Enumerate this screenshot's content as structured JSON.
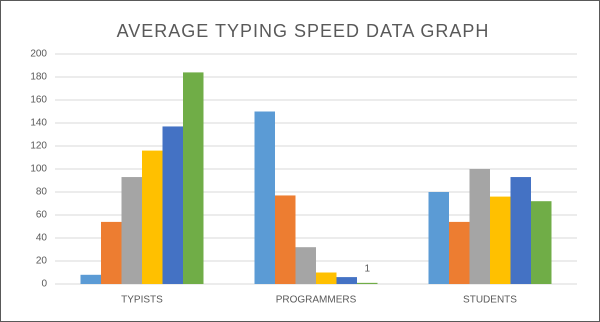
{
  "chart_data": {
    "type": "bar",
    "title": "AVERAGE TYPING SPEED DATA GRAPH",
    "categories": [
      "TYPISTS",
      "PROGRAMMERS",
      "STUDENTS"
    ],
    "series": [
      {
        "color": "#5b9bd5",
        "values": [
          8,
          150,
          80
        ]
      },
      {
        "color": "#ed7d31",
        "values": [
          54,
          77,
          54
        ]
      },
      {
        "color": "#a5a5a5",
        "values": [
          93,
          32,
          100
        ]
      },
      {
        "color": "#ffc000",
        "values": [
          116,
          10,
          76
        ]
      },
      {
        "color": "#4472c4",
        "values": [
          137,
          6,
          93
        ]
      },
      {
        "color": "#70ad47",
        "values": [
          184,
          1,
          72
        ],
        "value_labels": [
          null,
          "1",
          null
        ]
      }
    ],
    "ylim": [
      0,
      200
    ],
    "yticks": [
      0,
      20,
      40,
      60,
      80,
      100,
      120,
      140,
      160,
      180,
      200
    ],
    "grid": true
  }
}
